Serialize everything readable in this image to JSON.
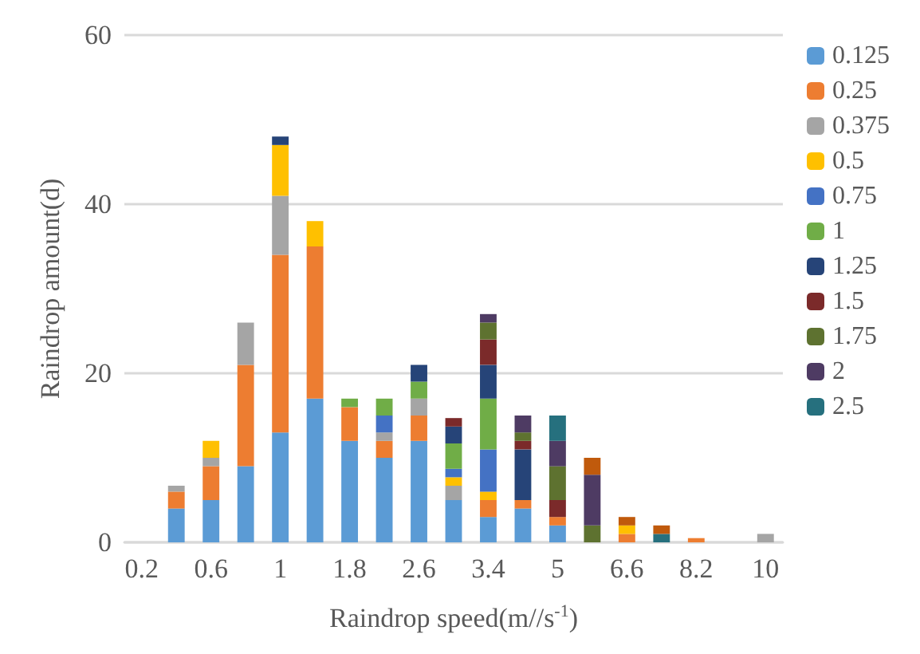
{
  "chart_data": {
    "type": "bar",
    "stacked": true,
    "xlabel": "Raindrop speed(m//s$^{-1}$)",
    "ylabel": "Raindrop amount(d)",
    "categories": [
      "0.2",
      null,
      "0.6",
      null,
      "1",
      null,
      "1.8",
      null,
      "2.6",
      null,
      "3.4",
      null,
      "5",
      null,
      "6.6",
      null,
      "8.2",
      null,
      "10"
    ],
    "ylim": [
      0,
      60
    ],
    "yticks": [
      0,
      20,
      40,
      60
    ],
    "grid": "y",
    "legend": "right",
    "series": [
      {
        "name": "0.125",
        "color": "#5b9bd5",
        "values": [
          null,
          4,
          5,
          9,
          13,
          17,
          12,
          10,
          12,
          5,
          3,
          4,
          2,
          null,
          null,
          null,
          null,
          null,
          null
        ]
      },
      {
        "name": "0.25",
        "color": "#ed7d31",
        "values": [
          null,
          2,
          4,
          12,
          21,
          18,
          4,
          2,
          3,
          null,
          2,
          1,
          1,
          null,
          1,
          null,
          0.5,
          null,
          null
        ]
      },
      {
        "name": "0.375",
        "color": "#a5a5a5",
        "values": [
          null,
          0.7,
          1,
          5,
          7,
          null,
          null,
          1,
          2,
          1.7,
          null,
          null,
          null,
          null,
          null,
          null,
          null,
          null,
          1
        ]
      },
      {
        "name": "0.5",
        "color": "#ffc000",
        "values": [
          null,
          null,
          2,
          null,
          6,
          3,
          null,
          null,
          null,
          1,
          1,
          null,
          null,
          null,
          1,
          null,
          null,
          null,
          null
        ]
      },
      {
        "name": "0.75",
        "color": "#4472c4",
        "values": [
          null,
          null,
          null,
          null,
          null,
          null,
          null,
          2,
          null,
          1,
          5,
          null,
          null,
          null,
          null,
          null,
          null,
          null,
          null
        ]
      },
      {
        "name": "1",
        "color": "#70ad47",
        "values": [
          null,
          null,
          null,
          null,
          null,
          null,
          1,
          2,
          2,
          3,
          6,
          null,
          null,
          null,
          null,
          null,
          null,
          null,
          null
        ]
      },
      {
        "name": "1.25",
        "color": "#264478",
        "values": [
          null,
          null,
          null,
          null,
          1,
          null,
          null,
          null,
          2,
          2,
          4,
          6,
          null,
          null,
          null,
          null,
          null,
          null,
          null
        ]
      },
      {
        "name": "1.5",
        "color": "#7b2a2a",
        "values": [
          null,
          null,
          null,
          null,
          null,
          null,
          null,
          null,
          null,
          1,
          3,
          1,
          2,
          null,
          null,
          null,
          null,
          null,
          null
        ]
      },
      {
        "name": "1.75",
        "color": "#5e7230",
        "values": [
          null,
          null,
          null,
          null,
          null,
          null,
          null,
          null,
          null,
          null,
          2,
          1,
          4,
          2,
          null,
          null,
          null,
          null,
          null
        ]
      },
      {
        "name": "2",
        "color": "#4e3b63",
        "values": [
          null,
          null,
          null,
          null,
          null,
          null,
          null,
          null,
          null,
          null,
          1,
          2,
          3,
          6,
          null,
          null,
          null,
          null,
          null
        ]
      },
      {
        "name": "2.5",
        "color": "#26707e",
        "values": [
          null,
          null,
          null,
          null,
          null,
          null,
          null,
          null,
          null,
          null,
          null,
          null,
          3,
          null,
          null,
          1,
          null,
          null,
          null
        ]
      },
      {
        "color": "#c05a0c",
        "values": [
          null,
          null,
          null,
          null,
          null,
          null,
          null,
          null,
          null,
          null,
          null,
          null,
          null,
          2,
          1,
          1,
          null,
          null,
          null
        ]
      }
    ]
  }
}
